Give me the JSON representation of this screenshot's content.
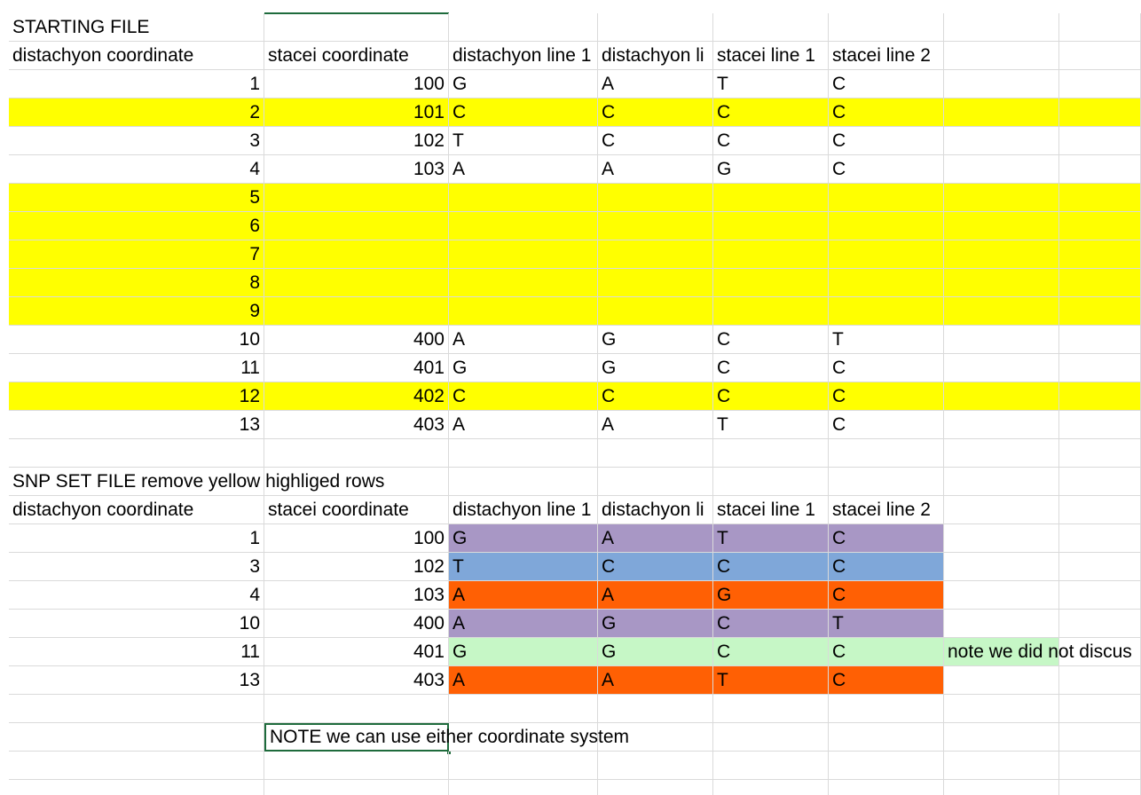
{
  "colors": {
    "yellow": "#ffff00",
    "purple": "#a897c5",
    "blue": "#7fa7d9",
    "orange": "#ff6004",
    "green": "#c6f7c6",
    "grid": "#dadada",
    "selection": "#1e6b3c"
  },
  "starting": {
    "title": "STARTING FILE",
    "headers": [
      "distachyon coordinate",
      "stacei coordinate",
      "distachyon line 1",
      "distachyon li",
      "stacei line 1",
      "stacei line 2"
    ],
    "rows": [
      {
        "d": "1",
        "s": "100",
        "d1": "G",
        "d2": "A",
        "s1": "T",
        "s2": "C",
        "hl": false
      },
      {
        "d": "2",
        "s": "101",
        "d1": "C",
        "d2": "C",
        "s1": "C",
        "s2": "C",
        "hl": true
      },
      {
        "d": "3",
        "s": "102",
        "d1": "T",
        "d2": "C",
        "s1": "C",
        "s2": "C",
        "hl": false
      },
      {
        "d": "4",
        "s": "103",
        "d1": "A",
        "d2": "A",
        "s1": "G",
        "s2": "C",
        "hl": false
      },
      {
        "d": "5",
        "s": "",
        "d1": "",
        "d2": "",
        "s1": "",
        "s2": "",
        "hl": true
      },
      {
        "d": "6",
        "s": "",
        "d1": "",
        "d2": "",
        "s1": "",
        "s2": "",
        "hl": true
      },
      {
        "d": "7",
        "s": "",
        "d1": "",
        "d2": "",
        "s1": "",
        "s2": "",
        "hl": true
      },
      {
        "d": "8",
        "s": "",
        "d1": "",
        "d2": "",
        "s1": "",
        "s2": "",
        "hl": true
      },
      {
        "d": "9",
        "s": "",
        "d1": "",
        "d2": "",
        "s1": "",
        "s2": "",
        "hl": true
      },
      {
        "d": "10",
        "s": "400",
        "d1": "A",
        "d2": "G",
        "s1": "C",
        "s2": "T",
        "hl": false
      },
      {
        "d": "11",
        "s": "401",
        "d1": "G",
        "d2": "G",
        "s1": "C",
        "s2": "C",
        "hl": false
      },
      {
        "d": "12",
        "s": "402",
        "d1": "C",
        "d2": "C",
        "s1": "C",
        "s2": "C",
        "hl": true
      },
      {
        "d": "13",
        "s": "403",
        "d1": "A",
        "d2": "A",
        "s1": "T",
        "s2": "C",
        "hl": false
      }
    ]
  },
  "snp": {
    "title": "SNP SET FILE remove yellow highliged rows",
    "headers": [
      "distachyon coordinate",
      "stacei coordinate",
      "distachyon line 1",
      "distachyon li",
      "stacei line 1",
      "stacei line 2"
    ],
    "rows": [
      {
        "d": "1",
        "s": "100",
        "d1": "G",
        "d2": "A",
        "s1": "T",
        "s2": "C",
        "color": "purple"
      },
      {
        "d": "3",
        "s": "102",
        "d1": "T",
        "d2": "C",
        "s1": "C",
        "s2": "C",
        "color": "blue"
      },
      {
        "d": "4",
        "s": "103",
        "d1": "A",
        "d2": "A",
        "s1": "G",
        "s2": "C",
        "color": "orange"
      },
      {
        "d": "10",
        "s": "400",
        "d1": "A",
        "d2": "G",
        "s1": "C",
        "s2": "T",
        "color": "purple"
      },
      {
        "d": "11",
        "s": "401",
        "d1": "G",
        "d2": "G",
        "s1": "C",
        "s2": "C",
        "color": "green"
      },
      {
        "d": "13",
        "s": "403",
        "d1": "A",
        "d2": "A",
        "s1": "T",
        "s2": "C",
        "color": "orange"
      }
    ],
    "side_note": "note we did not discus"
  },
  "coordinate_note": "NOTE we can use either coordinate system"
}
